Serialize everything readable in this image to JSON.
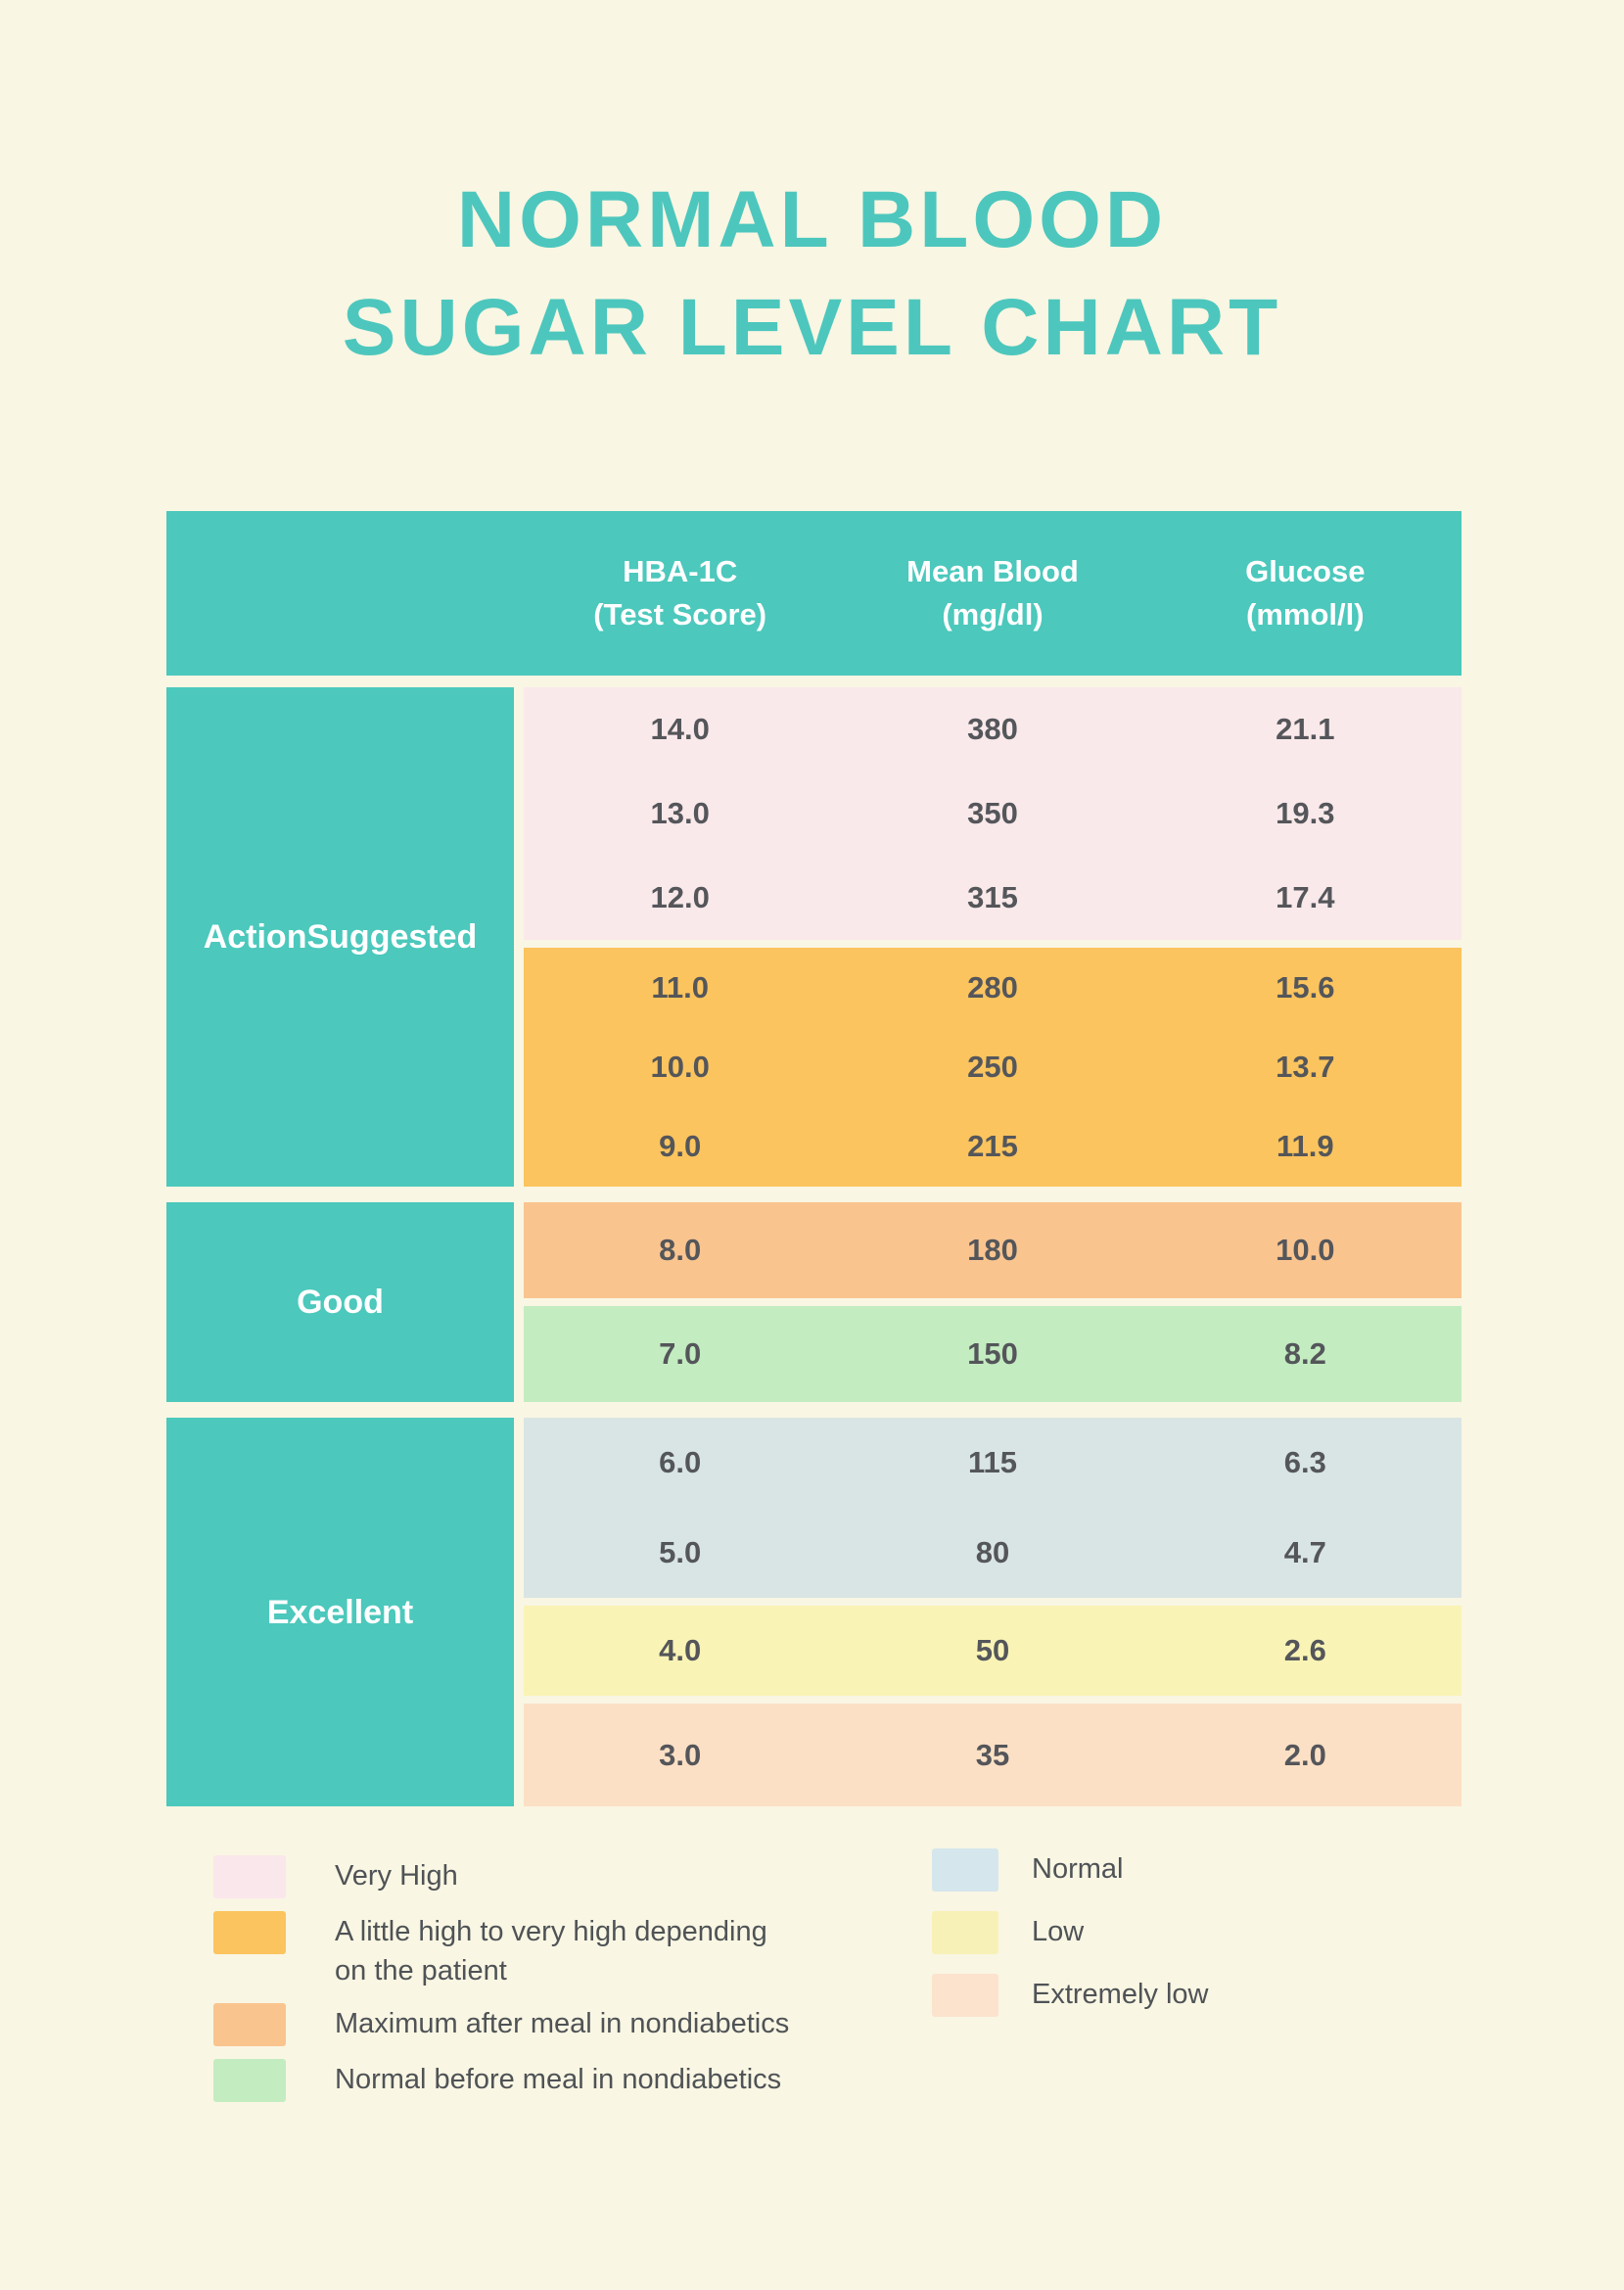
{
  "page": {
    "background": "#F9F6E3",
    "title_line1": "NORMAL BLOOD",
    "title_line2": "SUGAR LEVEL CHART",
    "title_color": "#4DC7BD"
  },
  "table": {
    "header_bg": "#4CC8BC",
    "header_text_color": "#FFFFFF",
    "value_color": "#54565A",
    "columns": [
      {
        "line1": "HBA-1C",
        "line2": "(Test Score)"
      },
      {
        "line1": "Mean Blood",
        "line2": "(mg/dl)"
      },
      {
        "line1": "Glucose",
        "line2": "(mmol/l)"
      }
    ],
    "sections": [
      {
        "label_lines": [
          "Action",
          "Suggested"
        ],
        "blocks": [
          {
            "level": "Very High",
            "bg": "#FAE9EA",
            "rows": [
              [
                "14.0",
                "380",
                "21.1"
              ],
              [
                "13.0",
                "350",
                "19.3"
              ],
              [
                "12.0",
                "315",
                "17.4"
              ]
            ]
          },
          {
            "level": "A little high to very high depending on the patient",
            "bg": "#FBC45E",
            "rows": [
              [
                "11.0",
                "280",
                "15.6"
              ],
              [
                "10.0",
                "250",
                "13.7"
              ],
              [
                "9.0",
                "215",
                "11.9"
              ]
            ]
          }
        ]
      },
      {
        "label_lines": [
          "Good"
        ],
        "blocks": [
          {
            "level": "Maximum after meal in nondiabetics",
            "bg": "#FAC48F",
            "rows": [
              [
                "8.0",
                "180",
                "10.0"
              ]
            ]
          },
          {
            "level": "Normal before meal in nondiabetics",
            "bg": "#C3ECC1",
            "rows": [
              [
                "7.0",
                "150",
                "8.2"
              ]
            ]
          }
        ]
      },
      {
        "label_lines": [
          "Excellent"
        ],
        "blocks": [
          {
            "level": "Normal",
            "bg": "#D9E5E4",
            "rows": [
              [
                "6.0",
                "115",
                "6.3"
              ],
              [
                "5.0",
                "80",
                "4.7"
              ]
            ]
          },
          {
            "level": "Low",
            "bg": "#F9F4B5",
            "rows": [
              [
                "4.0",
                "50",
                "2.6"
              ]
            ]
          },
          {
            "level": "Extremely low",
            "bg": "#FCE0C5",
            "rows": [
              [
                "3.0",
                "35",
                "2.0"
              ]
            ]
          }
        ]
      }
    ]
  },
  "legend": {
    "text_color": "#4F5356",
    "left": [
      {
        "swatch": "#FAE7EB",
        "lines": [
          "Very High"
        ]
      },
      {
        "swatch": "#FBC45E",
        "lines": [
          "A little high to very high depending",
          "on the patient"
        ]
      },
      {
        "swatch": "#FAC48F",
        "lines": [
          "Maximum after meal in nondiabetics"
        ]
      },
      {
        "swatch": "#C3ECC1",
        "lines": [
          "Normal before meal in nondiabetics"
        ]
      }
    ],
    "right": [
      {
        "swatch": "#D5E6ED",
        "lines": [
          "Normal"
        ]
      },
      {
        "swatch": "#F8F1B7",
        "lines": [
          "Low"
        ]
      },
      {
        "swatch": "#FCE3CD",
        "lines": [
          "Extremely low"
        ]
      }
    ]
  },
  "chart_data": {
    "type": "table",
    "title": "NORMAL BLOOD SUGAR LEVEL CHART",
    "columns": [
      "HBA-1C (Test Score)",
      "Mean Blood (mg/dl)",
      "Glucose (mmol/l)"
    ],
    "row_groups": [
      {
        "group": "Action Suggested",
        "rows": [
          {
            "level": "Very High",
            "hba1c": 14.0,
            "mean_blood_mg_dl": 380,
            "glucose_mmol_l": 21.1
          },
          {
            "level": "Very High",
            "hba1c": 13.0,
            "mean_blood_mg_dl": 350,
            "glucose_mmol_l": 19.3
          },
          {
            "level": "Very High",
            "hba1c": 12.0,
            "mean_blood_mg_dl": 315,
            "glucose_mmol_l": 17.4
          },
          {
            "level": "A little high to very high depending on the patient",
            "hba1c": 11.0,
            "mean_blood_mg_dl": 280,
            "glucose_mmol_l": 15.6
          },
          {
            "level": "A little high to very high depending on the patient",
            "hba1c": 10.0,
            "mean_blood_mg_dl": 250,
            "glucose_mmol_l": 13.7
          },
          {
            "level": "A little high to very high depending on the patient",
            "hba1c": 9.0,
            "mean_blood_mg_dl": 215,
            "glucose_mmol_l": 11.9
          }
        ]
      },
      {
        "group": "Good",
        "rows": [
          {
            "level": "Maximum after meal in nondiabetics",
            "hba1c": 8.0,
            "mean_blood_mg_dl": 180,
            "glucose_mmol_l": 10.0
          },
          {
            "level": "Normal before meal in nondiabetics",
            "hba1c": 7.0,
            "mean_blood_mg_dl": 150,
            "glucose_mmol_l": 8.2
          }
        ]
      },
      {
        "group": "Excellent",
        "rows": [
          {
            "level": "Normal",
            "hba1c": 6.0,
            "mean_blood_mg_dl": 115,
            "glucose_mmol_l": 6.3
          },
          {
            "level": "Normal",
            "hba1c": 5.0,
            "mean_blood_mg_dl": 80,
            "glucose_mmol_l": 4.7
          },
          {
            "level": "Low",
            "hba1c": 4.0,
            "mean_blood_mg_dl": 50,
            "glucose_mmol_l": 2.6
          },
          {
            "level": "Extremely low",
            "hba1c": 3.0,
            "mean_blood_mg_dl": 35,
            "glucose_mmol_l": 2.0
          }
        ]
      }
    ],
    "legend": [
      {
        "label": "Very High",
        "color": "#FAE7EB"
      },
      {
        "label": "A little high to very high depending on the patient",
        "color": "#FBC45E"
      },
      {
        "label": "Maximum after meal in nondiabetics",
        "color": "#FAC48F"
      },
      {
        "label": "Normal before meal in nondiabetics",
        "color": "#C3ECC1"
      },
      {
        "label": "Normal",
        "color": "#D5E6ED"
      },
      {
        "label": "Low",
        "color": "#F8F1B7"
      },
      {
        "label": "Extremely low",
        "color": "#FCE3CD"
      }
    ]
  }
}
